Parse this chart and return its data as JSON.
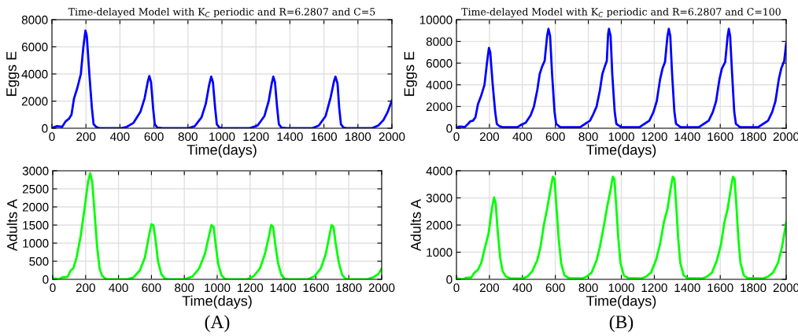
{
  "chart_data": [
    {
      "type": "line",
      "title": "Time-delayed Model with K$_{C}$ periodic and R=6.2807 and C=5",
      "xlabel": "Time(days)",
      "ylabel": "Eggs E",
      "xlim": [
        0,
        2000
      ],
      "ylim": [
        0,
        8000
      ],
      "xticks": [
        0,
        200,
        400,
        600,
        800,
        1000,
        1200,
        1400,
        1600,
        1800,
        2000
      ],
      "yticks": [
        0,
        2000,
        4000,
        6000,
        8000
      ],
      "grid": true,
      "series": [
        {
          "color": "#0000ff",
          "x": [
            0,
            15,
            30,
            50,
            60,
            80,
            100,
            115,
            130,
            150,
            170,
            185,
            197,
            205,
            220,
            235,
            245,
            260,
            280,
            400,
            440,
            480,
            520,
            545,
            565,
            573,
            583,
            595,
            605,
            620,
            650,
            800,
            840,
            880,
            905,
            925,
            937,
            947,
            960,
            970,
            985,
            1010,
            1160,
            1210,
            1250,
            1275,
            1293,
            1302,
            1312,
            1325,
            1335,
            1350,
            1380,
            1530,
            1570,
            1610,
            1640,
            1660,
            1668,
            1680,
            1690,
            1700,
            1715,
            1740,
            1880,
            1920,
            1950,
            1975,
            2000
          ],
          "values": [
            0,
            100,
            150,
            120,
            100,
            500,
            700,
            1000,
            2200,
            3000,
            4000,
            6000,
            7200,
            6800,
            4000,
            1500,
            300,
            100,
            0,
            0,
            100,
            400,
            1200,
            2200,
            3500,
            3850,
            3400,
            1500,
            300,
            50,
            0,
            0,
            150,
            800,
            1800,
            3200,
            3800,
            3400,
            1500,
            300,
            50,
            0,
            0,
            200,
            900,
            2000,
            3300,
            3800,
            3400,
            1500,
            300,
            50,
            0,
            0,
            200,
            900,
            2300,
            3500,
            3800,
            3300,
            1500,
            300,
            50,
            0,
            0,
            200,
            600,
            1200,
            2050
          ]
        }
      ]
    },
    {
      "type": "line",
      "title": "Time-delayed Model with K$_{C}$ periodic and R=6.2807 and C=100",
      "xlabel": "Time(days)",
      "ylabel": "Eggs E",
      "xlim": [
        0,
        2000
      ],
      "ylim": [
        0,
        10000
      ],
      "xticks": [
        0,
        200,
        400,
        600,
        800,
        1000,
        1200,
        1400,
        1600,
        1800,
        2000
      ],
      "yticks": [
        0,
        2000,
        4000,
        6000,
        8000,
        10000
      ],
      "grid": true,
      "series": [
        {
          "color": "#0000ff",
          "x": [
            0,
            15,
            30,
            50,
            70,
            85,
            100,
            115,
            130,
            150,
            170,
            185,
            197,
            205,
            220,
            235,
            245,
            260,
            280,
            370,
            390,
            420,
            450,
            470,
            490,
            505,
            520,
            535,
            550,
            558,
            568,
            580,
            595,
            605,
            630,
            750,
            780,
            810,
            830,
            850,
            870,
            885,
            900,
            912,
            920,
            925,
            935,
            945,
            960,
            970,
            1000,
            1110,
            1140,
            1170,
            1195,
            1215,
            1235,
            1250,
            1265,
            1280,
            1288,
            1297,
            1308,
            1322,
            1332,
            1360,
            1470,
            1500,
            1530,
            1555,
            1575,
            1595,
            1610,
            1630,
            1645,
            1652,
            1660,
            1672,
            1685,
            1695,
            1720,
            1830,
            1860,
            1890,
            1915,
            1935,
            1955,
            1970,
            1988,
            2000
          ],
          "values": [
            0,
            150,
            150,
            100,
            400,
            650,
            700,
            1000,
            2200,
            3000,
            4000,
            6000,
            7400,
            7000,
            4000,
            1500,
            400,
            200,
            100,
            100,
            300,
            500,
            1200,
            2000,
            3500,
            5000,
            5700,
            6200,
            8500,
            9150,
            8500,
            5000,
            1500,
            400,
            100,
            100,
            400,
            700,
            1300,
            2000,
            3500,
            5000,
            5700,
            6200,
            8700,
            9150,
            8500,
            5000,
            1500,
            400,
            100,
            100,
            400,
            700,
            1500,
            2500,
            4500,
            5500,
            6100,
            8500,
            9150,
            8500,
            5000,
            1500,
            400,
            100,
            100,
            400,
            700,
            1500,
            2500,
            4500,
            5500,
            6100,
            8500,
            9150,
            8500,
            5000,
            1500,
            400,
            100,
            100,
            400,
            700,
            1500,
            2500,
            4500,
            5500,
            6200,
            7800
          ]
        }
      ]
    },
    {
      "type": "line",
      "xlabel": "Time(days)",
      "ylabel": "Adults A",
      "xlim": [
        0,
        2000
      ],
      "ylim": [
        0,
        3000
      ],
      "xticks": [
        0,
        200,
        400,
        600,
        800,
        1000,
        1200,
        1400,
        1600,
        1800,
        2000
      ],
      "yticks": [
        0,
        500,
        1000,
        1500,
        2000,
        2500,
        3000
      ],
      "grid": true,
      "annotations": [
        "(A)"
      ],
      "series": [
        {
          "color": "#00ff00",
          "x": [
            0,
            20,
            40,
            60,
            80,
            90,
            110,
            125,
            145,
            170,
            195,
            215,
            228,
            240,
            255,
            270,
            285,
            300,
            320,
            340,
            450,
            490,
            530,
            560,
            585,
            600,
            612,
            625,
            640,
            660,
            680,
            700,
            800,
            850,
            890,
            925,
            950,
            965,
            978,
            990,
            1005,
            1025,
            1045,
            1070,
            1180,
            1220,
            1260,
            1290,
            1315,
            1328,
            1340,
            1352,
            1370,
            1390,
            1410,
            1430,
            1550,
            1590,
            1630,
            1660,
            1682,
            1695,
            1707,
            1720,
            1740,
            1760,
            1780,
            1800,
            1910,
            1950,
            1980,
            2000
          ],
          "values": [
            30,
            20,
            0,
            60,
            60,
            70,
            250,
            300,
            600,
            1200,
            2000,
            2700,
            2930,
            2700,
            1800,
            900,
            300,
            100,
            20,
            0,
            0,
            50,
            250,
            600,
            1200,
            1520,
            1500,
            1100,
            500,
            150,
            30,
            0,
            0,
            80,
            300,
            700,
            1200,
            1500,
            1450,
            1000,
            450,
            120,
            20,
            0,
            0,
            80,
            300,
            700,
            1200,
            1500,
            1450,
            1000,
            450,
            120,
            20,
            0,
            0,
            80,
            300,
            700,
            1200,
            1500,
            1450,
            1000,
            450,
            120,
            20,
            0,
            0,
            60,
            150,
            300
          ]
        }
      ]
    },
    {
      "type": "line",
      "xlabel": "Time(days)",
      "ylabel": "Adults A",
      "xlim": [
        0,
        2000
      ],
      "ylim": [
        0,
        4000
      ],
      "xticks": [
        0,
        200,
        400,
        600,
        800,
        1000,
        1200,
        1400,
        1600,
        1800,
        2000
      ],
      "yticks": [
        0,
        1000,
        2000,
        3000,
        4000
      ],
      "grid": true,
      "annotations": [
        "(B)"
      ],
      "series": [
        {
          "color": "#00ff00",
          "x": [
            0,
            20,
            40,
            60,
            80,
            90,
            110,
            130,
            150,
            170,
            195,
            215,
            228,
            238,
            250,
            265,
            280,
            300,
            330,
            400,
            430,
            460,
            490,
            510,
            530,
            550,
            570,
            585,
            595,
            605,
            620,
            635,
            655,
            680,
            760,
            790,
            820,
            850,
            870,
            895,
            915,
            935,
            948,
            958,
            968,
            982,
            995,
            1015,
            1040,
            1120,
            1150,
            1180,
            1210,
            1235,
            1258,
            1280,
            1298,
            1312,
            1322,
            1332,
            1345,
            1358,
            1378,
            1400,
            1490,
            1520,
            1550,
            1580,
            1605,
            1625,
            1645,
            1663,
            1677,
            1687,
            1697,
            1710,
            1723,
            1743,
            1765,
            1860,
            1890,
            1920,
            1950,
            1975,
            2000
          ],
          "values": [
            50,
            20,
            0,
            60,
            60,
            70,
            250,
            350,
            600,
            1100,
            1700,
            2600,
            3020,
            2800,
            1800,
            800,
            300,
            100,
            30,
            30,
            100,
            300,
            700,
            1200,
            2000,
            2600,
            3300,
            3780,
            3700,
            2800,
            1500,
            600,
            150,
            50,
            30,
            100,
            250,
            700,
            1200,
            2000,
            2700,
            3300,
            3780,
            3700,
            2800,
            1500,
            600,
            150,
            50,
            30,
            100,
            250,
            700,
            1300,
            2100,
            2600,
            3300,
            3780,
            3700,
            2800,
            1500,
            600,
            150,
            50,
            30,
            100,
            250,
            700,
            1300,
            2100,
            2600,
            3300,
            3780,
            3700,
            2800,
            1500,
            600,
            150,
            50,
            30,
            100,
            250,
            600,
            1200,
            2100
          ]
        }
      ]
    }
  ]
}
